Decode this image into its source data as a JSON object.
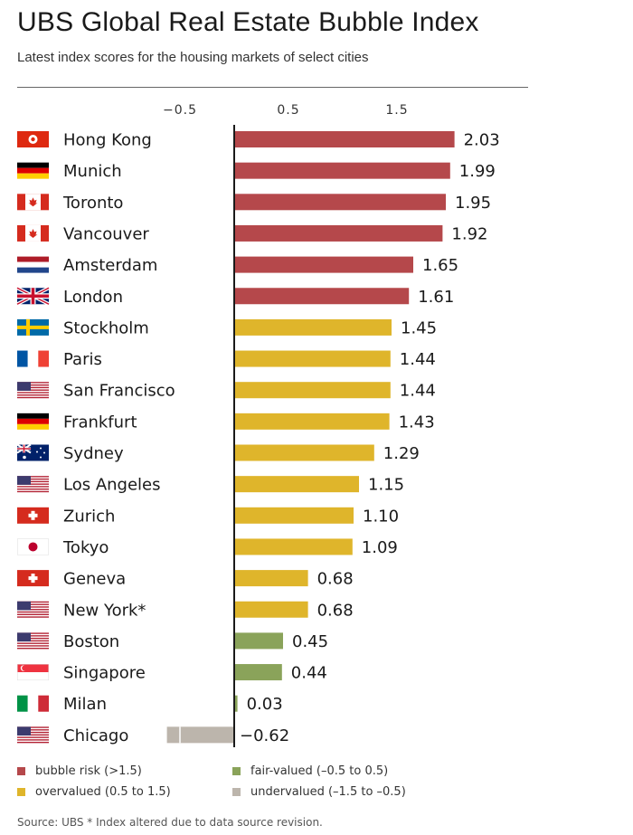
{
  "title": "UBS Global Real Estate Bubble Index",
  "subtitle": "Latest index scores for the housing markets of select cities",
  "source_note": "Source: UBS  * Index altered due to data source revision.",
  "colors": {
    "bubble": "#b5484b",
    "overvalued": "#dfb52b",
    "fair": "#8aa35a",
    "undervalued": "#bcb5ac"
  },
  "legend": [
    {
      "label": "bubble risk (>1.5)",
      "color_key": "bubble"
    },
    {
      "label": "fair-valued (–0.5 to 0.5)",
      "color_key": "fair"
    },
    {
      "label": "overvalued (0.5 to 1.5)",
      "color_key": "overvalued"
    },
    {
      "label": "undervalued (–1.5 to –0.5)",
      "color_key": "undervalued"
    }
  ],
  "chart_data": {
    "type": "bar",
    "orientation": "horizontal",
    "title": "UBS Global Real Estate Bubble Index",
    "subtitle": "Latest index scores for the housing markets of select cities",
    "xticks": [
      -0.5,
      0.5,
      1.5
    ],
    "xtick_labels": [
      "−0.5",
      "0.5",
      "1.5"
    ],
    "categories": [
      "Hong Kong",
      "Munich",
      "Toronto",
      "Vancouver",
      "Amsterdam",
      "London",
      "Stockholm",
      "Paris",
      "San Francisco",
      "Frankfurt",
      "Sydney",
      "Los Angeles",
      "Zurich",
      "Tokyo",
      "Geneva",
      "New York*",
      "Boston",
      "Singapore",
      "Milan",
      "Chicago"
    ],
    "values": [
      2.03,
      1.99,
      1.95,
      1.92,
      1.65,
      1.61,
      1.45,
      1.44,
      1.44,
      1.43,
      1.29,
      1.15,
      1.1,
      1.09,
      0.68,
      0.68,
      0.45,
      0.44,
      0.03,
      -0.62
    ],
    "value_labels": [
      "2.03",
      "1.99",
      "1.95",
      "1.92",
      "1.65",
      "1.61",
      "1.45",
      "1.44",
      "1.44",
      "1.43",
      "1.29",
      "1.15",
      "1.10",
      "1.09",
      "0.68",
      "0.68",
      "0.45",
      "0.44",
      "0.03",
      "−0.62"
    ],
    "categories_class": [
      "bubble",
      "bubble",
      "bubble",
      "bubble",
      "bubble",
      "bubble",
      "overvalued",
      "overvalued",
      "overvalued",
      "overvalued",
      "overvalued",
      "overvalued",
      "overvalued",
      "overvalued",
      "overvalued",
      "overvalued",
      "fair",
      "fair",
      "fair",
      "undervalued"
    ],
    "flags": [
      "hong-kong-flag-icon",
      "germany-flag-icon",
      "canada-flag-icon",
      "canada-flag-icon",
      "netherlands-flag-icon",
      "uk-flag-icon",
      "sweden-flag-icon",
      "france-flag-icon",
      "usa-flag-icon",
      "germany-flag-icon",
      "australia-flag-icon",
      "usa-flag-icon",
      "switzerland-flag-icon",
      "japan-flag-icon",
      "switzerland-flag-icon",
      "usa-flag-icon",
      "usa-flag-icon",
      "singapore-flag-icon",
      "italy-flag-icon",
      "usa-flag-icon"
    ],
    "grid": false,
    "legend_position": "bottom"
  }
}
